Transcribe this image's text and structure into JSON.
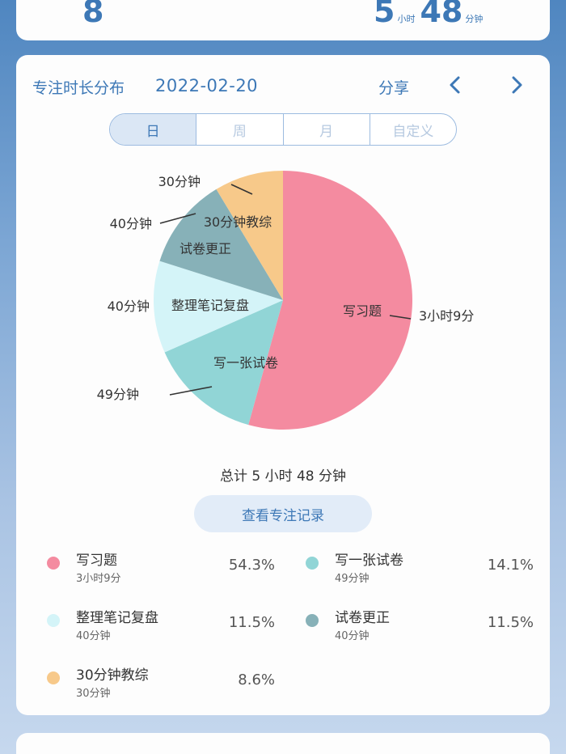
{
  "summary": {
    "count_value": "8",
    "duration_hours": "5",
    "hours_unit": "小时",
    "duration_minutes": "48",
    "minutes_unit": "分钟"
  },
  "header": {
    "title": "专注时长分布",
    "date": "2022-02-20",
    "share_label": "分享",
    "prev_icon": "chevron-left-icon",
    "next_icon": "chevron-right-icon"
  },
  "tabs": [
    {
      "label": "日",
      "active": true
    },
    {
      "label": "周",
      "active": false
    },
    {
      "label": "月",
      "active": false
    },
    {
      "label": "自定义",
      "active": false
    }
  ],
  "total_text": "总计  5  小时  48  分钟",
  "records_button": "查看专注记录",
  "colors": {
    "accent": "#3d78b6",
    "slices": [
      "#f48ba0",
      "#91d5d6",
      "#d4f4f8",
      "#87b1b8",
      "#f7c98a"
    ]
  },
  "chart_data": {
    "type": "pie",
    "categories": [
      "写习题",
      "写一张试卷",
      "整理笔记复盘",
      "试卷更正",
      "30分钟教综"
    ],
    "values": [
      189,
      49,
      40,
      40,
      30
    ],
    "value_labels": [
      "3小时9分",
      "49分钟",
      "40分钟",
      "40分钟",
      "30分钟"
    ],
    "percentages": [
      "54.3%",
      "14.1%",
      "11.5%",
      "11.5%",
      "8.6%"
    ],
    "title": "",
    "legend": "bottom"
  },
  "legend": [
    {
      "name": "写习题",
      "sub": "3小时9分",
      "pct": "54.3%"
    },
    {
      "name": "写一张试卷",
      "sub": "49分钟",
      "pct": "14.1%"
    },
    {
      "name": "整理笔记复盘",
      "sub": "40分钟",
      "pct": "11.5%"
    },
    {
      "name": "试卷更正",
      "sub": "40分钟",
      "pct": "11.5%"
    },
    {
      "name": "30分钟教综",
      "sub": "30分钟",
      "pct": "8.6%"
    }
  ]
}
